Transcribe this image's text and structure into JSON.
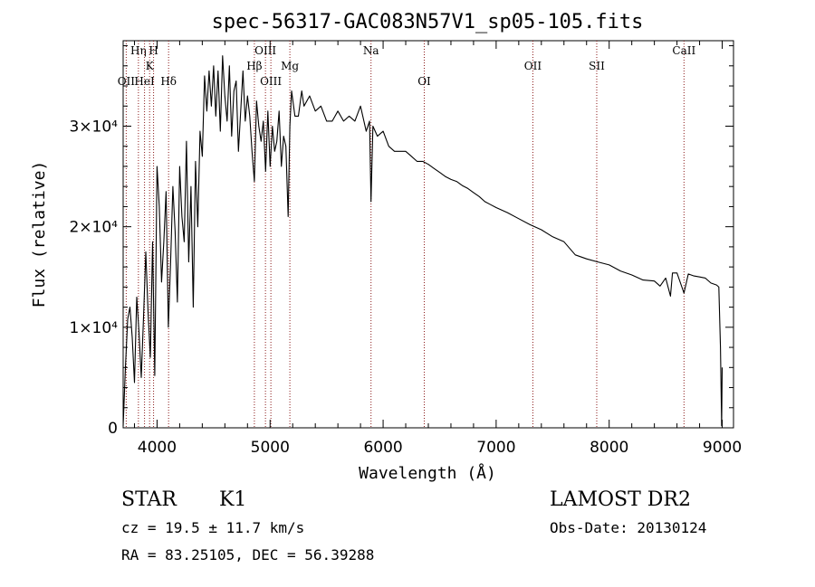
{
  "chart_data": {
    "type": "line",
    "title": "spec-56317-GAC083N57V1_sp05-105.fits",
    "xlabel": "Wavelength (Å)",
    "ylabel": "Flux (relative)",
    "xlim": [
      3700,
      9100
    ],
    "ylim": [
      0,
      38500
    ],
    "xticks": [
      4000,
      5000,
      6000,
      7000,
      8000,
      9000
    ],
    "x_tick_labels": [
      "4000",
      "5000",
      "6000",
      "7000",
      "8000",
      "9000"
    ],
    "yticks": [
      0,
      10000,
      20000,
      30000
    ],
    "y_tick_labels": [
      "0",
      "1×10⁴",
      "2×10⁴",
      "3×10⁴"
    ],
    "grid": false,
    "series_color": "#000000",
    "line_marker_color": "#8b1a1a",
    "series": [
      {
        "x": [
          3700,
          3720,
          3740,
          3760,
          3780,
          3800,
          3820,
          3840,
          3860,
          3880,
          3900,
          3920,
          3940,
          3960,
          3980,
          4000,
          4020,
          4040,
          4060,
          4080,
          4100,
          4120,
          4140,
          4160,
          4180,
          4200,
          4220,
          4240,
          4260,
          4280,
          4300,
          4320,
          4340,
          4360,
          4380,
          4400,
          4420,
          4440,
          4460,
          4480,
          4500,
          4520,
          4540,
          4560,
          4580,
          4600,
          4620,
          4640,
          4660,
          4680,
          4700,
          4720,
          4740,
          4760,
          4780,
          4800,
          4820,
          4840,
          4861,
          4880,
          4900,
          4920,
          4940,
          4960,
          4980,
          5000,
          5020,
          5040,
          5060,
          5080,
          5100,
          5120,
          5140,
          5160,
          5175,
          5190,
          5220,
          5250,
          5280,
          5300,
          5350,
          5400,
          5450,
          5500,
          5550,
          5600,
          5650,
          5700,
          5750,
          5800,
          5850,
          5880,
          5893,
          5910,
          5950,
          6000,
          6050,
          6100,
          6150,
          6200,
          6250,
          6300,
          6350,
          6400,
          6450,
          6500,
          6550,
          6600,
          6650,
          6700,
          6750,
          6800,
          6850,
          6900,
          6950,
          7000,
          7100,
          7200,
          7300,
          7400,
          7500,
          7600,
          7700,
          7800,
          7900,
          8000,
          8100,
          8200,
          8300,
          8400,
          8450,
          8500,
          8542,
          8560,
          8600,
          8662,
          8700,
          8750,
          8800,
          8850,
          8900,
          8950,
          8970,
          8985,
          8995,
          9000
        ],
        "y": [
          200,
          6000,
          10800,
          12000,
          9000,
          4500,
          13000,
          9500,
          5000,
          11000,
          17500,
          11500,
          7000,
          18500,
          5200,
          26000,
          22000,
          14500,
          18500,
          23500,
          10000,
          16500,
          24000,
          19500,
          12500,
          26000,
          21000,
          18500,
          28500,
          16500,
          24000,
          12000,
          26500,
          20000,
          29500,
          27000,
          35000,
          31500,
          35500,
          32000,
          36000,
          31000,
          35500,
          29500,
          37000,
          33000,
          30500,
          36000,
          29000,
          33500,
          34500,
          27500,
          31500,
          35500,
          30500,
          33000,
          31000,
          27500,
          24500,
          32500,
          30000,
          28500,
          30500,
          25500,
          31500,
          26000,
          30000,
          27500,
          28500,
          31500,
          26000,
          29000,
          28000,
          21000,
          30000,
          33500,
          31000,
          31000,
          33500,
          32000,
          33000,
          31500,
          32000,
          30500,
          30500,
          31500,
          30500,
          31000,
          30500,
          32000,
          29500,
          30500,
          22500,
          30000,
          29000,
          29500,
          28000,
          27500,
          27500,
          27500,
          27000,
          26500,
          26500,
          26200,
          25800,
          25400,
          25000,
          24700,
          24500,
          24100,
          23800,
          23400,
          23000,
          22500,
          22200,
          21900,
          21400,
          20800,
          20200,
          19700,
          19000,
          18500,
          17200,
          16800,
          16500,
          16200,
          15600,
          15200,
          14700,
          14600,
          14100,
          14900,
          13100,
          15400,
          15400,
          13400,
          15300,
          15100,
          15000,
          14900,
          14400,
          14200,
          14000,
          8000,
          200,
          6000
        ]
      }
    ],
    "lines": [
      {
        "label": "OII",
        "x": 3727,
        "row": 3
      },
      {
        "label": "Hη",
        "x": 3835,
        "row": 1
      },
      {
        "label": "HeI",
        "x": 3889,
        "row": 3
      },
      {
        "label": "K",
        "x": 3934,
        "row": 2
      },
      {
        "label": "H",
        "x": 3969,
        "row": 1
      },
      {
        "label": "Hδ",
        "x": 4102,
        "row": 3
      },
      {
        "label": "Hβ",
        "x": 4861,
        "row": 2
      },
      {
        "label": "OIII",
        "x": 4959,
        "row": 1
      },
      {
        "label": "OIII",
        "x": 5007,
        "row": 3
      },
      {
        "label": "Mg",
        "x": 5175,
        "row": 2
      },
      {
        "label": "Na",
        "x": 5893,
        "row": 1
      },
      {
        "label": "OI",
        "x": 6364,
        "row": 3
      },
      {
        "label": "OII",
        "x": 7325,
        "row": 2
      },
      {
        "label": "SII",
        "x": 7890,
        "row": 2
      },
      {
        "label": "CaII",
        "x": 8662,
        "row": 1
      }
    ]
  },
  "info": {
    "object_class": "STAR",
    "subclass": "K1",
    "survey": "LAMOST DR2",
    "redshift": "cz = 19.5 ± 11.7 km/s",
    "obs_date": "Obs-Date: 20130124",
    "coords": "RA =  83.25105, DEC =  56.39288"
  }
}
